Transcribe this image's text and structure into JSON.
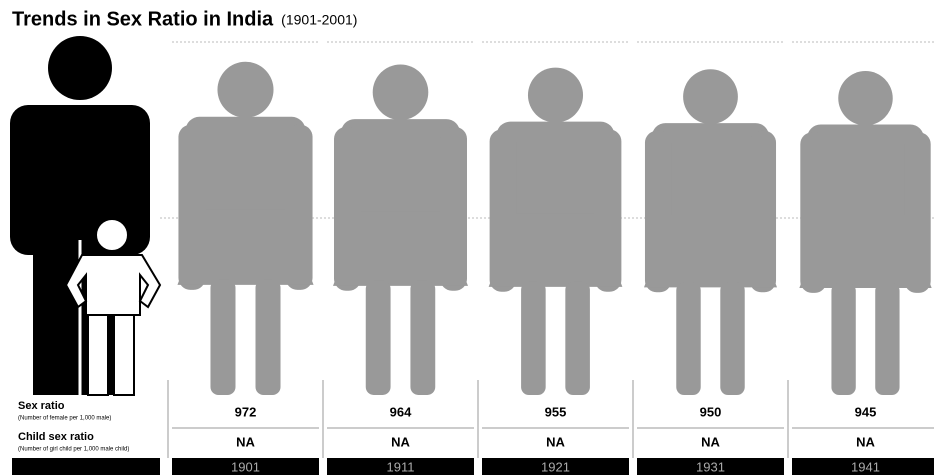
{
  "chart_data": {
    "type": "pictogram",
    "title": "Trends in Sex Ratio in India",
    "subtitle": "(1901-2001)",
    "categories": [
      "1901",
      "1911",
      "1921",
      "1931",
      "1941"
    ],
    "series": [
      {
        "name": "Sex ratio",
        "note": "(Number of female per 1,000 male)",
        "color": "#999999",
        "values": [
          972,
          964,
          955,
          950,
          945
        ]
      },
      {
        "name": "Child sex ratio",
        "note": "(Number of girl child per 1,000 male child)",
        "values": [
          null,
          null,
          null,
          null,
          null
        ],
        "value_labels": [
          "NA",
          "NA",
          "NA",
          "NA",
          "NA"
        ]
      }
    ]
  }
}
